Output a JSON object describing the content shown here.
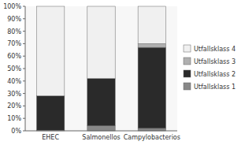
{
  "chart_data": {
    "type": "bar",
    "stacked": true,
    "categories": [
      "EHEC",
      "Salmonellos",
      "Campylobacterios"
    ],
    "series": [
      {
        "name": "Utfallsklass 1",
        "color": "#888888",
        "values": [
          0.5,
          4.0,
          2.0
        ]
      },
      {
        "name": "Utfallsklass 2",
        "color": "#2a2a2a",
        "values": [
          27.5,
          38.0,
          65.0
        ]
      },
      {
        "name": "Utfallsklass 3",
        "color": "#b0b0b0",
        "values": [
          0.0,
          0.0,
          3.0
        ]
      },
      {
        "name": "Utfallsklass 4",
        "color": "#f0f0f0",
        "values": [
          72.0,
          58.0,
          30.0
        ]
      }
    ],
    "ylim": [
      0,
      100
    ],
    "yticks": [
      {
        "value": 0,
        "label": "0%"
      },
      {
        "value": 10,
        "label": "10%"
      },
      {
        "value": 20,
        "label": "20%"
      },
      {
        "value": 30,
        "label": "30%"
      },
      {
        "value": 40,
        "label": "40%"
      },
      {
        "value": 50,
        "label": "50%"
      },
      {
        "value": 60,
        "label": "60%"
      },
      {
        "value": 70,
        "label": "70%"
      },
      {
        "value": 80,
        "label": "80%"
      },
      {
        "value": 90,
        "label": "90%"
      },
      {
        "value": 100,
        "label": "100%"
      }
    ],
    "grid": false,
    "legend": "right"
  }
}
